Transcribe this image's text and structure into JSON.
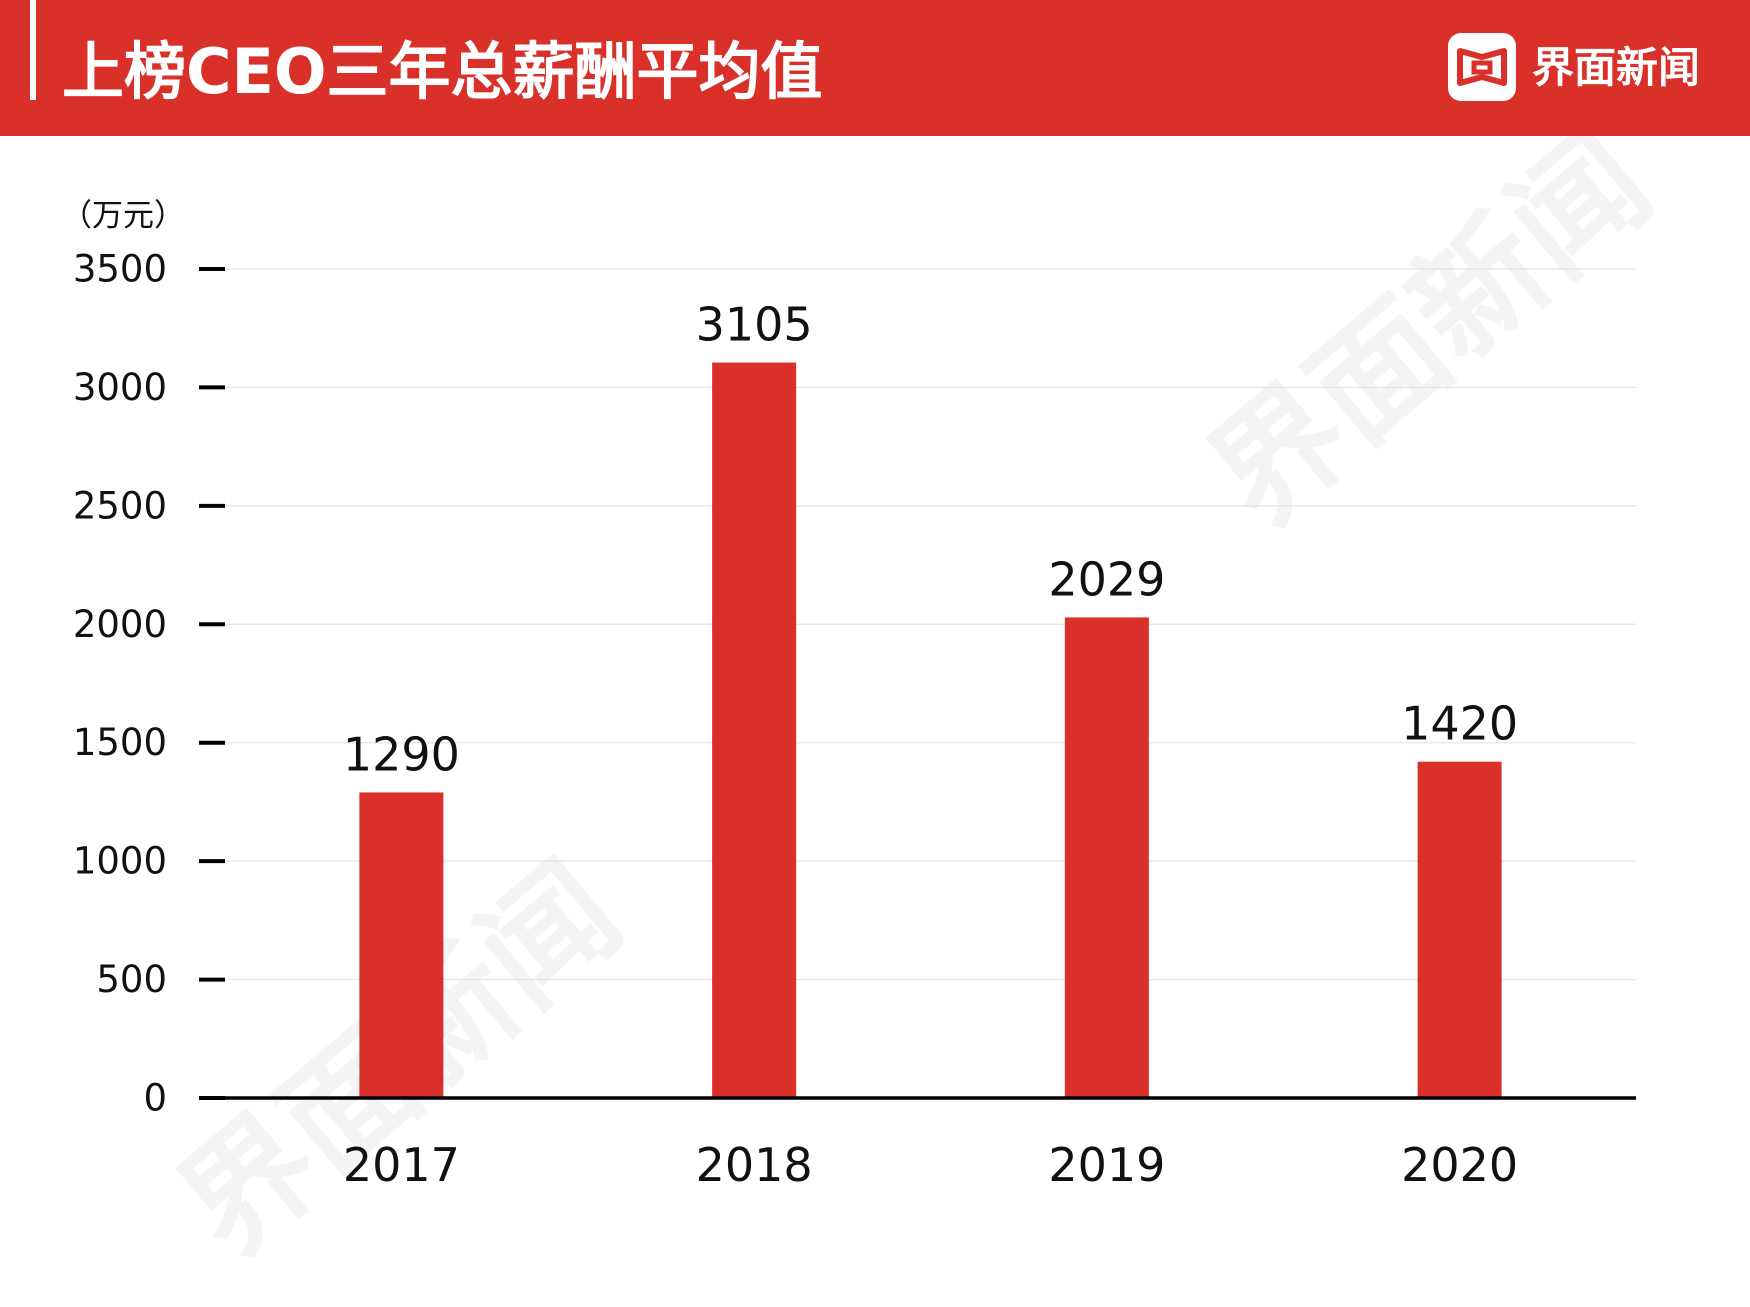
{
  "header": {
    "brand": "界面新闻"
  },
  "watermark": "界面新闻",
  "colors": {
    "header_bg": "#D9302A",
    "bar": "#D9302A",
    "axis": "#000000",
    "grid": "#e4e4e4"
  },
  "chart_data": {
    "type": "bar",
    "title": "上榜CEO三年总薪酬平均值",
    "ylabel": "（万元）",
    "xlabel": "",
    "categories": [
      "2017",
      "2018",
      "2019",
      "2020"
    ],
    "values": [
      1290,
      3105,
      2029,
      1420
    ],
    "yticks": [
      0,
      500,
      1000,
      1500,
      2000,
      2500,
      3000,
      3500
    ],
    "ylim": [
      0,
      3500
    ],
    "grid": true,
    "legend": "none",
    "data_labels": true
  }
}
